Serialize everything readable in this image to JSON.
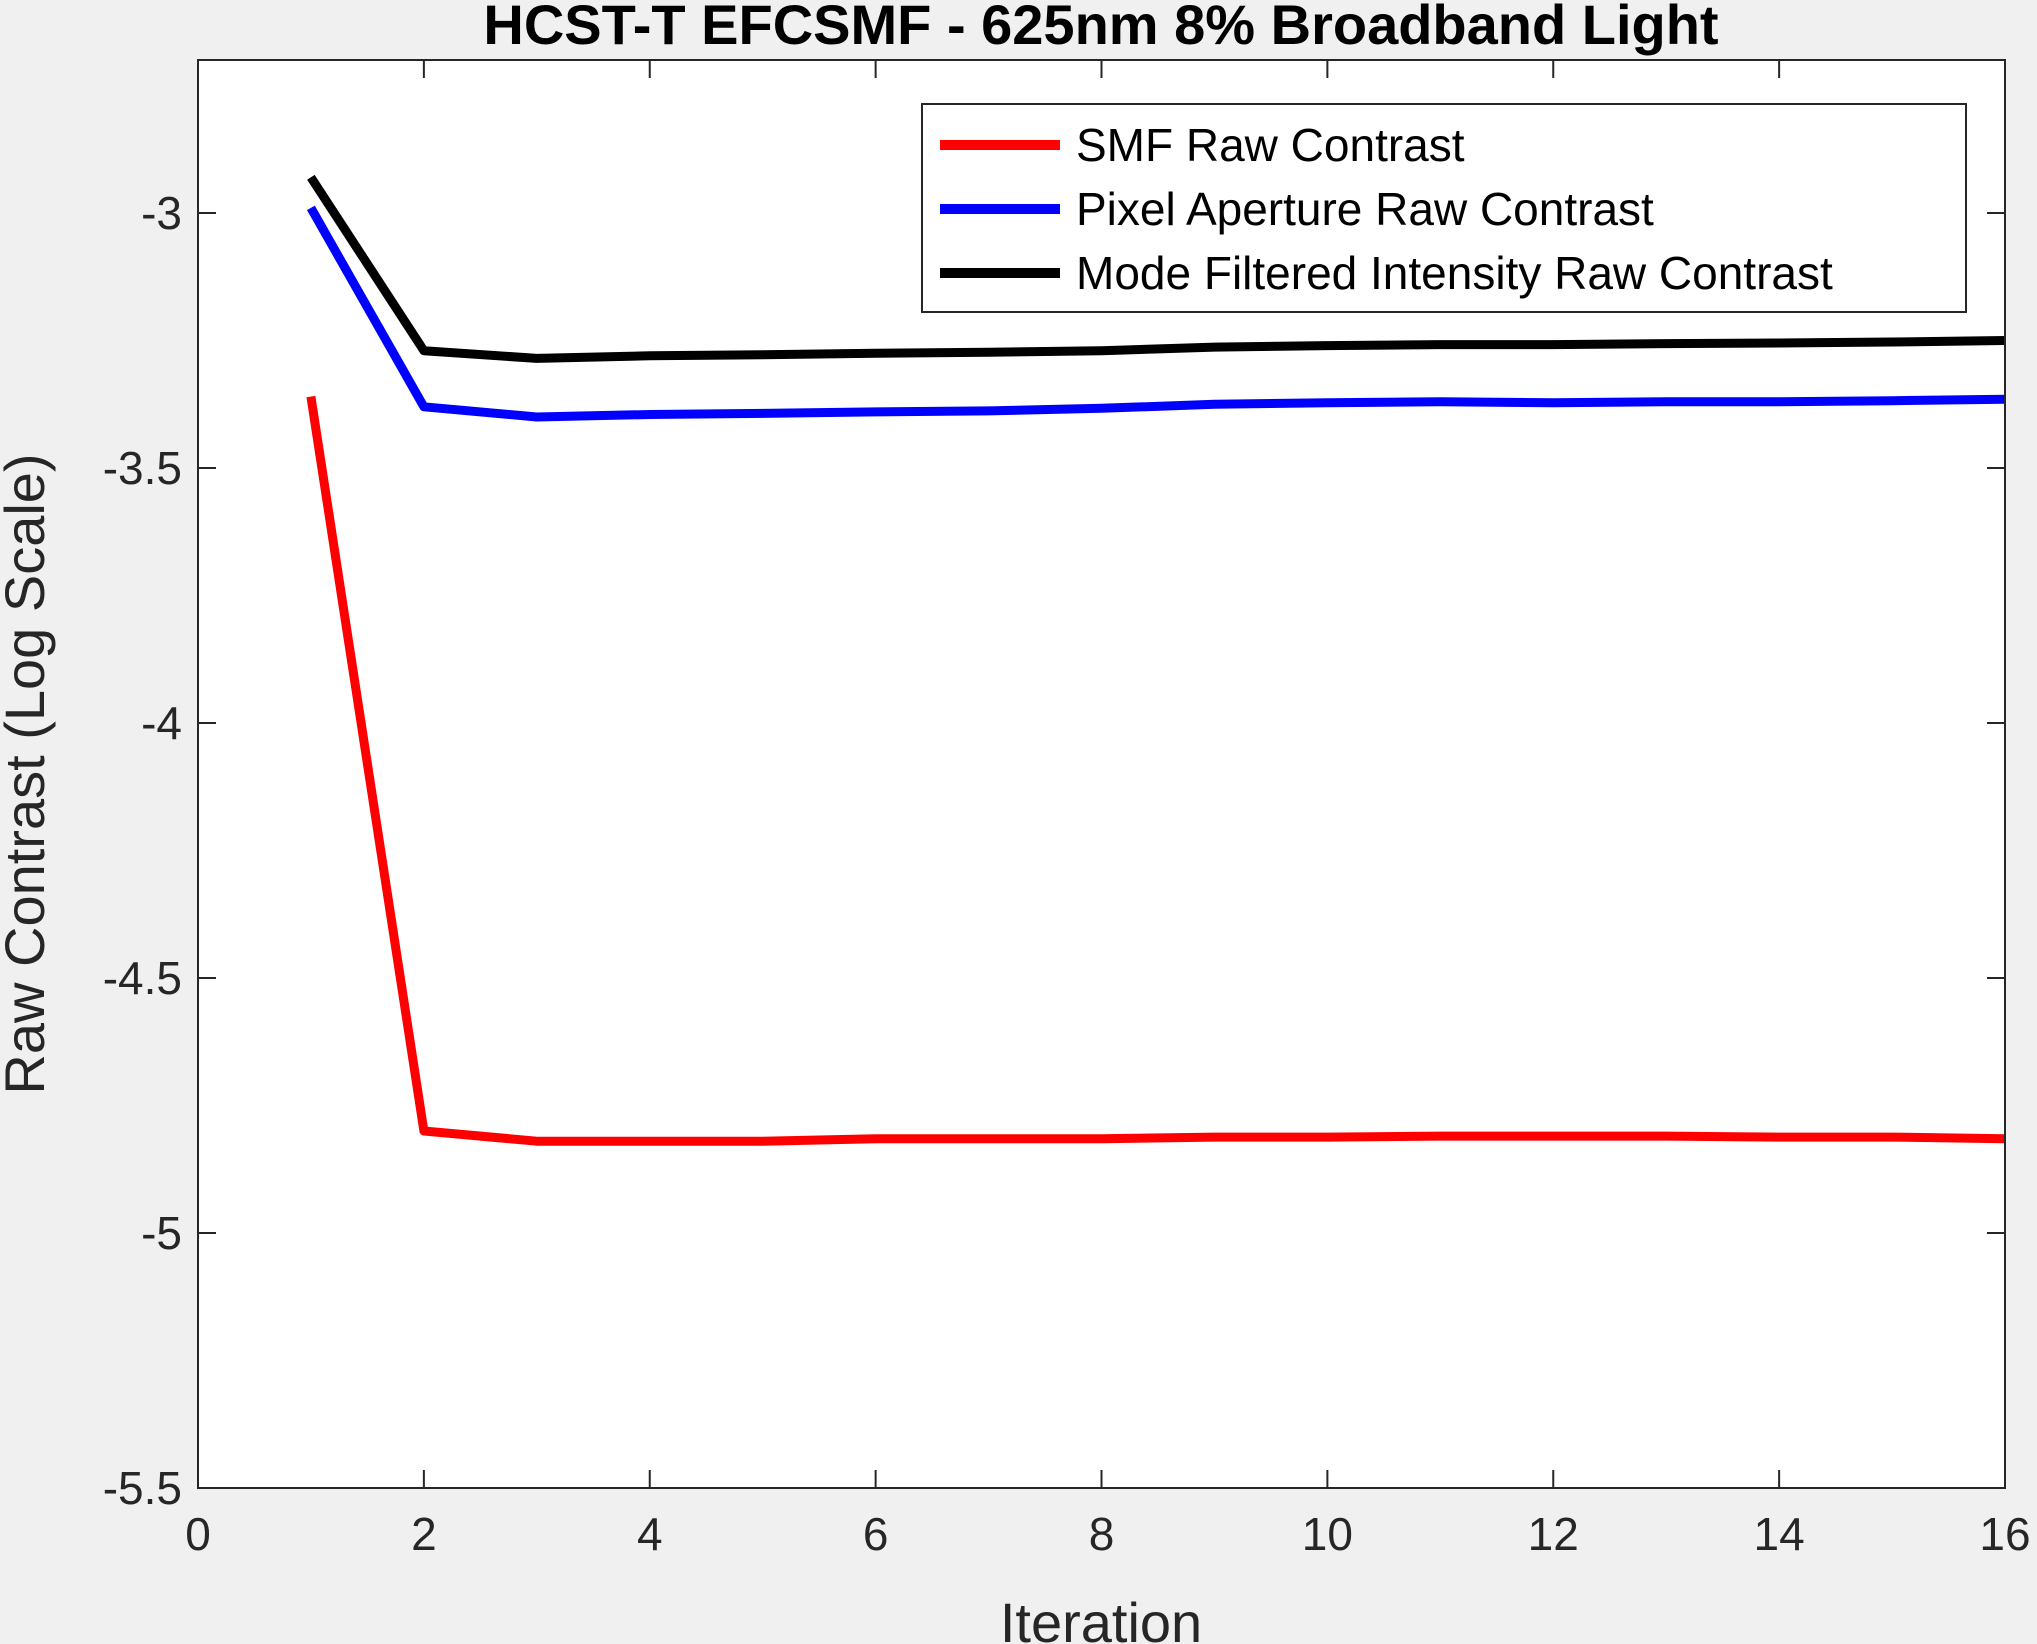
{
  "chart_data": {
    "type": "line",
    "title": "HCST-T EFCSMF - 625nm 8% Broadband Light",
    "xlabel": "Iteration",
    "ylabel": "Raw Contrast (Log Scale)",
    "xlim": [
      0,
      16
    ],
    "ylim": [
      -5.5,
      -2.7
    ],
    "xticks": [
      0,
      2,
      4,
      6,
      8,
      10,
      12,
      14,
      16
    ],
    "yticks": [
      -3,
      -3.5,
      -4,
      -4.5,
      -5,
      -5.5
    ],
    "xtick_labels": [
      "0",
      "2",
      "4",
      "6",
      "8",
      "10",
      "12",
      "14",
      "16"
    ],
    "ytick_labels": [
      "-3",
      "-3.5",
      "-4",
      "-4.5",
      "-5",
      "-5.5"
    ],
    "grid": false,
    "legend_position": "top-right",
    "x": [
      1,
      2,
      3,
      4,
      5,
      6,
      7,
      8,
      9,
      10,
      11,
      12,
      13,
      14,
      15,
      16
    ],
    "series": [
      {
        "name": "SMF Raw Contrast",
        "color": "#ff0000",
        "values": [
          -3.36,
          -4.8,
          -4.82,
          -4.82,
          -4.82,
          -4.815,
          -4.815,
          -4.815,
          -4.812,
          -4.812,
          -4.81,
          -4.81,
          -4.81,
          -4.812,
          -4.812,
          -4.815
        ]
      },
      {
        "name": "Pixel Aperture Raw Contrast",
        "color": "#0000ff",
        "values": [
          -2.99,
          -3.38,
          -3.4,
          -3.395,
          -3.393,
          -3.39,
          -3.388,
          -3.383,
          -3.375,
          -3.372,
          -3.37,
          -3.372,
          -3.37,
          -3.37,
          -3.368,
          -3.365
        ]
      },
      {
        "name": "Mode Filtered Intensity Raw Contrast",
        "color": "#000000",
        "values": [
          -2.93,
          -3.27,
          -3.285,
          -3.28,
          -3.278,
          -3.275,
          -3.273,
          -3.27,
          -3.263,
          -3.26,
          -3.258,
          -3.258,
          -3.256,
          -3.255,
          -3.253,
          -3.25
        ]
      }
    ]
  }
}
